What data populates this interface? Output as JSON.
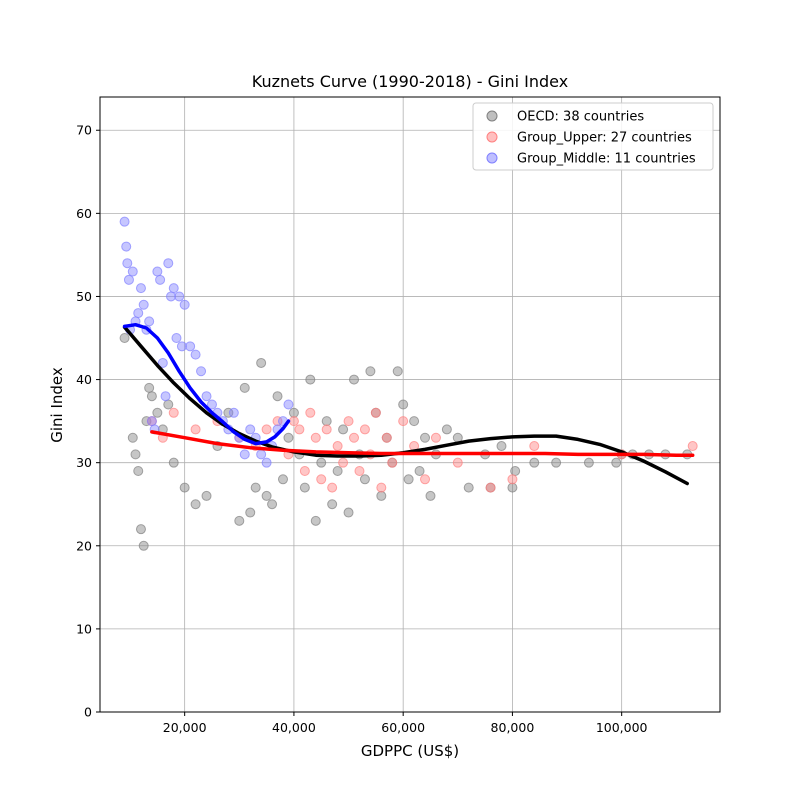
{
  "chart_data": {
    "type": "scatter",
    "title": "Kuznets Curve (1990-2018) - Gini Index",
    "xlabel": "GDPPC (US$)",
    "ylabel": "Gini Index",
    "xlim": [
      4500,
      118000
    ],
    "ylim": [
      0,
      74
    ],
    "x_ticks": [
      20000,
      40000,
      60000,
      80000,
      100000
    ],
    "x_tick_labels": [
      "20,000",
      "40,000",
      "60,000",
      "80,000",
      "100,000"
    ],
    "y_ticks": [
      0,
      10,
      20,
      30,
      40,
      50,
      60,
      70
    ],
    "y_tick_labels": [
      "0",
      "10",
      "20",
      "30",
      "40",
      "50",
      "60",
      "70"
    ],
    "grid": true,
    "legend_position": "top-right",
    "legend": [
      {
        "label": "OECD: 38 countries",
        "color": "#808080"
      },
      {
        "label": "Group_Upper: 27 countries",
        "color": "#ff8080"
      },
      {
        "label": "Group_Middle: 11 countries",
        "color": "#8080ff"
      }
    ],
    "series": [
      {
        "name": "OECD: 38 countries",
        "kind": "scatter",
        "color": "#808080",
        "points_note": "composite of all OECD points; most are shown blended with the overlapping group colours",
        "x": [
          9000,
          10500,
          11000,
          11500,
          12000,
          12500,
          13000,
          13500,
          14000,
          15000,
          16000,
          17000,
          18000,
          20000,
          22000,
          24000,
          26000,
          28000,
          30000,
          31000,
          32000,
          33000,
          34000,
          35000,
          36000,
          37000,
          38000,
          39000,
          40000,
          41000,
          42000,
          43000,
          44000,
          45000,
          46000,
          47000,
          48000,
          49000,
          50000,
          51000,
          52000,
          53000,
          54000,
          55000,
          56000,
          57000,
          58000,
          59000,
          60000,
          61000,
          62000,
          63000,
          64000,
          65000,
          66000,
          68000,
          70000,
          72000,
          75000,
          76000,
          78000,
          80000,
          80500,
          84000,
          88000,
          94000,
          99000,
          100000,
          102000,
          105000,
          108000,
          112000
        ],
        "y": [
          45,
          33,
          31,
          29,
          22,
          20,
          35,
          39,
          38,
          36,
          34,
          37,
          30,
          27,
          25,
          26,
          32,
          36,
          23,
          39,
          24,
          27,
          42,
          26,
          25,
          38,
          28,
          33,
          36,
          31,
          27,
          40,
          23,
          30,
          35,
          25,
          29,
          34,
          24,
          40,
          31,
          28,
          41,
          36,
          26,
          33,
          30,
          41,
          37,
          28,
          35,
          29,
          33,
          26,
          31,
          34,
          33,
          27,
          31,
          27,
          32,
          27,
          29,
          30,
          30,
          30,
          30,
          31,
          31,
          31,
          31,
          31
        ]
      },
      {
        "name": "Group_Upper: 27 countries",
        "kind": "scatter",
        "color": "#ff8080",
        "x": [
          14000,
          16000,
          18000,
          22000,
          26000,
          30000,
          33000,
          35000,
          37000,
          39000,
          40000,
          41000,
          42000,
          43000,
          44000,
          45000,
          46000,
          47000,
          48000,
          49000,
          50000,
          51000,
          52000,
          53000,
          54000,
          55000,
          56000,
          57000,
          58000,
          60000,
          62000,
          64000,
          66000,
          70000,
          76000,
          80000,
          84000,
          100000,
          113000
        ],
        "y": [
          35,
          33,
          36,
          34,
          35,
          33,
          32,
          34,
          35,
          31,
          35,
          34,
          29,
          36,
          33,
          28,
          34,
          27,
          32,
          30,
          35,
          33,
          29,
          34,
          31,
          36,
          27,
          33,
          30,
          35,
          32,
          28,
          33,
          30,
          27,
          28,
          32,
          31,
          32
        ]
      },
      {
        "name": "Group_Middle: 11 countries",
        "kind": "scatter",
        "color": "#8080ff",
        "x": [
          9000,
          9300,
          9500,
          9800,
          10000,
          10500,
          11000,
          11500,
          12000,
          12500,
          13000,
          13500,
          14000,
          14500,
          15000,
          15500,
          16000,
          16500,
          17000,
          17500,
          18000,
          18500,
          19000,
          19500,
          20000,
          21000,
          22000,
          23000,
          24000,
          25000,
          26000,
          27000,
          28000,
          29000,
          30000,
          31000,
          32000,
          33000,
          34000,
          35000,
          36000,
          37000,
          38000,
          39000
        ],
        "y": [
          59,
          56,
          54,
          52,
          46,
          53,
          47,
          48,
          51,
          49,
          46,
          47,
          35,
          34,
          53,
          52,
          42,
          38,
          54,
          50,
          51,
          45,
          50,
          44,
          49,
          44,
          43,
          41,
          38,
          37,
          36,
          35,
          34,
          36,
          33,
          31,
          34,
          33,
          31,
          30,
          32,
          34,
          35,
          37
        ]
      },
      {
        "name": "",
        "kind": "line",
        "color": "#000000",
        "x": [
          9000,
          12000,
          15000,
          18000,
          21000,
          24000,
          27000,
          30000,
          33000,
          36000,
          40000,
          44000,
          48000,
          52000,
          56000,
          60000,
          64000,
          68000,
          72000,
          76000,
          80000,
          84000,
          88000,
          92000,
          96000,
          100000,
          104000,
          108000,
          112000
        ],
        "y": [
          46.3,
          44.0,
          41.7,
          39.6,
          37.7,
          36.0,
          34.6,
          33.5,
          32.6,
          31.9,
          31.3,
          30.9,
          30.8,
          30.8,
          30.9,
          31.2,
          31.6,
          32.1,
          32.6,
          32.9,
          33.1,
          33.2,
          33.2,
          32.8,
          32.2,
          31.3,
          30.2,
          28.9,
          27.5
        ]
      },
      {
        "name": "",
        "kind": "line",
        "color": "#ff0000",
        "x": [
          14000,
          20000,
          26000,
          32000,
          38000,
          44000,
          50000,
          56000,
          62000,
          68000,
          74000,
          80000,
          86000,
          92000,
          98000,
          104000,
          110000,
          113000
        ],
        "y": [
          33.7,
          33.0,
          32.3,
          31.8,
          31.5,
          31.3,
          31.2,
          31.1,
          31.1,
          31.1,
          31.1,
          31.1,
          31.1,
          31.0,
          31.0,
          31.0,
          30.9,
          30.9
        ]
      },
      {
        "name": "",
        "kind": "line",
        "color": "#0000ff",
        "x": [
          9000,
          11000,
          13000,
          15000,
          17000,
          19000,
          21000,
          23000,
          25000,
          27000,
          29000,
          31000,
          33000,
          35000,
          36500,
          38000,
          39000
        ],
        "y": [
          46.4,
          46.6,
          46.2,
          45.0,
          43.2,
          41.0,
          39.0,
          37.3,
          36.0,
          34.9,
          33.7,
          32.8,
          32.3,
          32.5,
          33.1,
          34.1,
          35.0
        ]
      }
    ]
  }
}
